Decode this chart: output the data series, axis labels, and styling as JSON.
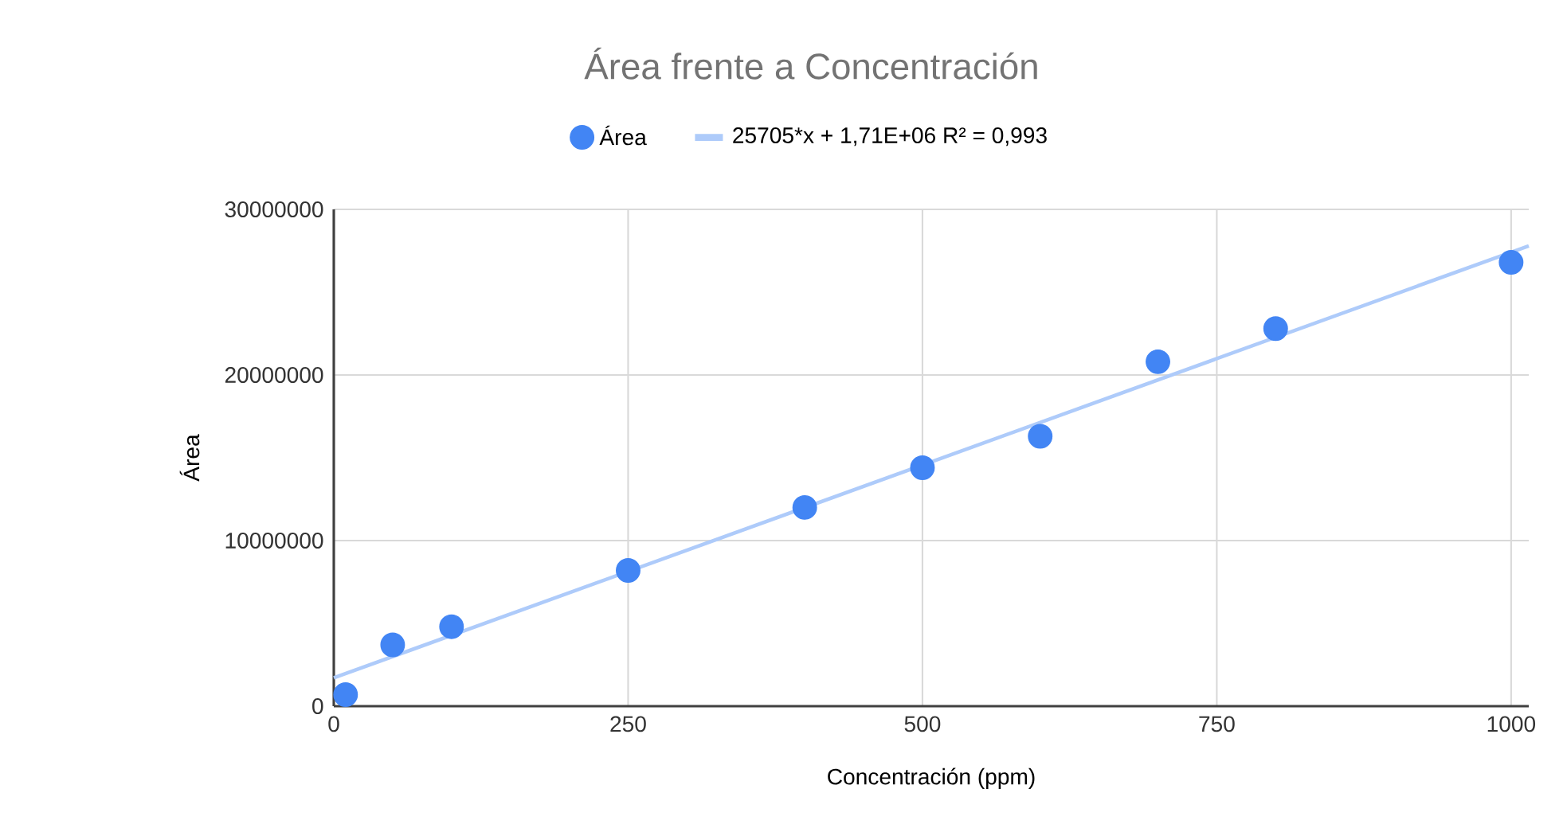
{
  "chart_data": {
    "type": "scatter",
    "title": "Área frente a Concentración",
    "xlabel": "Concentración  (ppm)",
    "ylabel": "Área",
    "xlim": [
      0,
      1015
    ],
    "xticks": [
      0,
      250,
      500,
      750,
      1000
    ],
    "ylim": [
      0,
      30000000
    ],
    "yticks": [
      0,
      10000000,
      20000000,
      30000000
    ],
    "grid": true,
    "legend": "top",
    "series": [
      {
        "name": "Área",
        "color": "#4285f4",
        "x": [
          10,
          50,
          100,
          250,
          400,
          500,
          600,
          700,
          800,
          1000
        ],
        "values": [
          700000,
          3700000,
          4800000,
          8200000,
          12000000,
          14400000,
          16300000,
          20800000,
          22800000,
          26800000
        ]
      },
      {
        "name": "25705*x + 1,71E+06 R² = 0,993",
        "type": "line",
        "color": "#aecbfa",
        "x": [
          0,
          1015
        ],
        "values": [
          1710000,
          27800000
        ]
      }
    ]
  }
}
